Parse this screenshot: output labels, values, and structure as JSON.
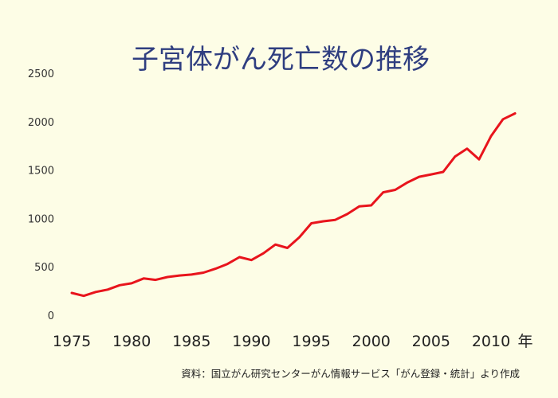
{
  "chart_data": {
    "type": "line",
    "title": "子宮体がん死亡数の推移",
    "xlabel": "",
    "ylabel": "",
    "x_unit": "年",
    "source": "資料：国立がん研究センターがん情報サービス「がん登録・統計」より作成",
    "ylim": [
      0,
      2500
    ],
    "yticks": [
      0,
      500,
      1000,
      1500,
      2000,
      2500
    ],
    "xticks": [
      1975,
      1980,
      1985,
      1990,
      1995,
      2000,
      2005,
      2010
    ],
    "grid": false,
    "line_color": "#e8141c",
    "title_color": "#2f3e80",
    "background_color": "#fdfde6",
    "series": [
      {
        "x": [
          1975,
          1976,
          1977,
          1978,
          1979,
          1980,
          1981,
          1982,
          1983,
          1984,
          1985,
          1986,
          1987,
          1988,
          1989,
          1990,
          1991,
          1992,
          1993,
          1994,
          1995,
          1996,
          1997,
          1998,
          1999,
          2000,
          2001,
          2002,
          2003,
          2004,
          2005,
          2006,
          2007,
          2008,
          2009,
          2010,
          2011,
          2012
        ],
        "values": [
          230,
          200,
          240,
          265,
          310,
          330,
          380,
          365,
          395,
          410,
          420,
          440,
          480,
          530,
          600,
          570,
          640,
          730,
          695,
          805,
          950,
          970,
          985,
          1045,
          1125,
          1135,
          1270,
          1295,
          1370,
          1430,
          1455,
          1480,
          1640,
          1720,
          1610,
          1850,
          2025,
          2085
        ]
      }
    ]
  }
}
